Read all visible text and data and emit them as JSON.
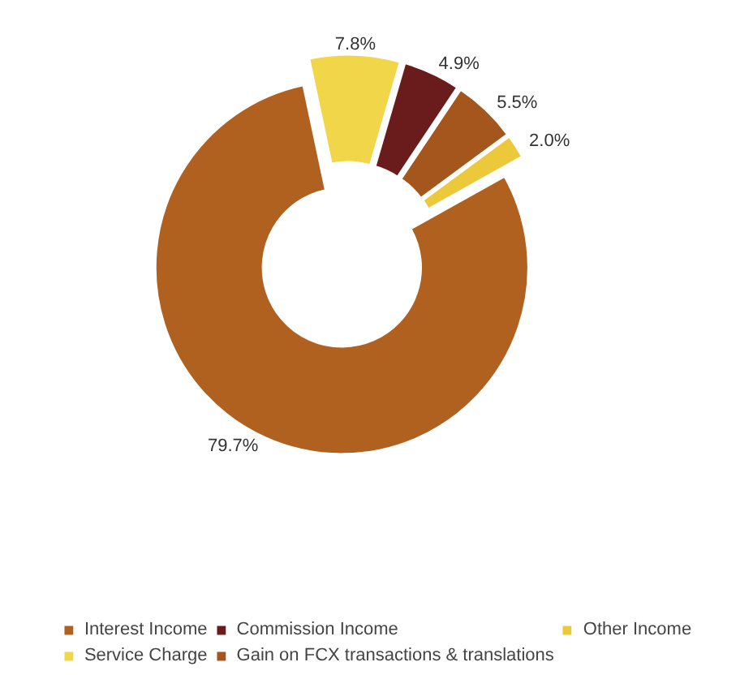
{
  "chart_data": {
    "type": "donut",
    "categories": [
      "Interest Income",
      "Service Charge",
      "Commission Income",
      "Gain on FCX transactions & translations",
      "Other Income"
    ],
    "values": [
      79.7,
      7.8,
      4.9,
      5.5,
      2.0
    ],
    "value_labels": [
      "79.7%",
      "7.8%",
      "4.9%",
      "5.5%",
      "2.0%"
    ],
    "colors": [
      "#b0601f",
      "#f2d64a",
      "#6a1c1c",
      "#a5561c",
      "#ecc93a"
    ],
    "legend": "bottom"
  }
}
